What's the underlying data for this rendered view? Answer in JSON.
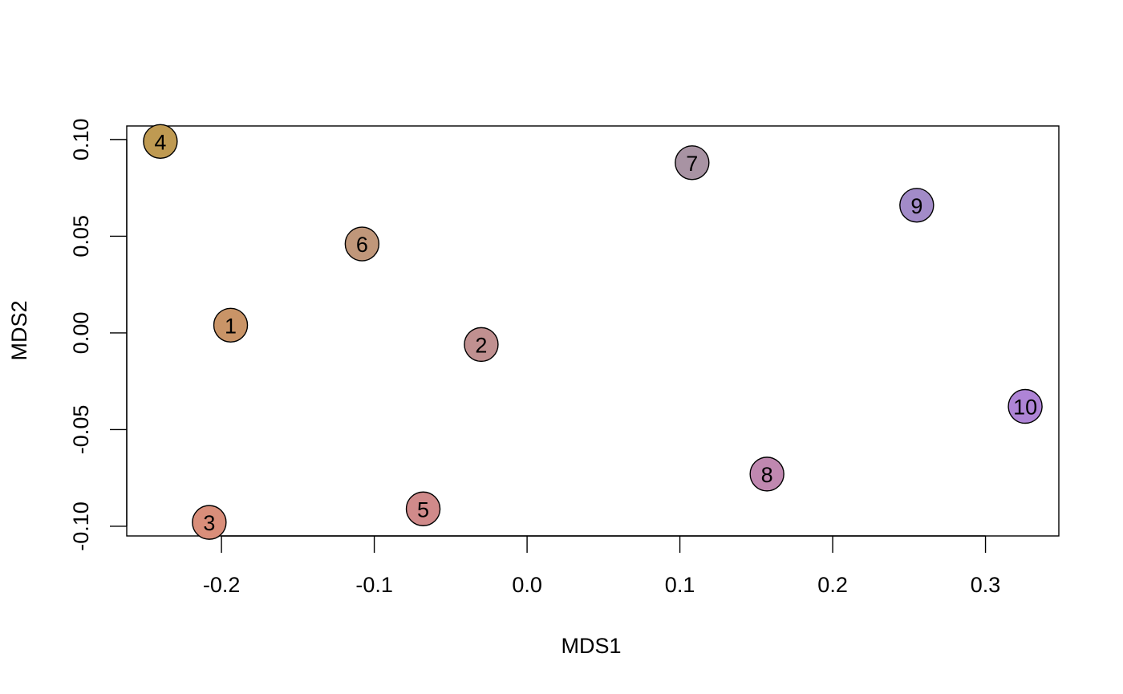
{
  "chart_data": {
    "type": "scatter",
    "title": "",
    "xlabel": "MDS1",
    "ylabel": "MDS2",
    "xlim": [
      -0.262,
      0.348
    ],
    "ylim": [
      -0.105,
      0.107
    ],
    "x_ticks": [
      -0.2,
      -0.1,
      0.0,
      0.1,
      0.2,
      0.3
    ],
    "x_tick_labels": [
      "-0.2",
      "-0.1",
      "0.0",
      "0.1",
      "0.2",
      "0.3"
    ],
    "y_ticks": [
      -0.1,
      -0.05,
      0.0,
      0.05,
      0.1
    ],
    "y_tick_labels": [
      "-0.10",
      "-0.05",
      "0.00",
      "0.05",
      "0.10"
    ],
    "grid": false,
    "legend": "none",
    "points": [
      {
        "label": "1",
        "x": -0.194,
        "y": 0.004,
        "color": "#c99467"
      },
      {
        "label": "2",
        "x": -0.03,
        "y": -0.006,
        "color": "#c09090"
      },
      {
        "label": "3",
        "x": -0.208,
        "y": -0.098,
        "color": "#d98e7a"
      },
      {
        "label": "4",
        "x": -0.24,
        "y": 0.099,
        "color": "#bf9a52"
      },
      {
        "label": "5",
        "x": -0.068,
        "y": -0.091,
        "color": "#d08a8a"
      },
      {
        "label": "6",
        "x": -0.108,
        "y": 0.046,
        "color": "#c0977a"
      },
      {
        "label": "7",
        "x": 0.108,
        "y": 0.088,
        "color": "#a893a3"
      },
      {
        "label": "8",
        "x": 0.157,
        "y": -0.073,
        "color": "#c088b0"
      },
      {
        "label": "9",
        "x": 0.255,
        "y": 0.066,
        "color": "#a28bc8"
      },
      {
        "label": "10",
        "x": 0.326,
        "y": -0.038,
        "color": "#ae84d6"
      }
    ]
  }
}
